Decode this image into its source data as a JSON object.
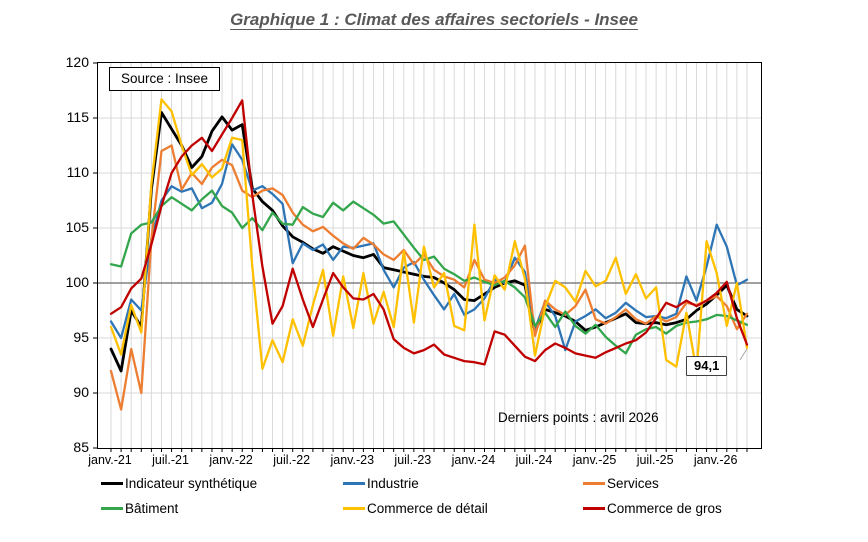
{
  "title": "Graphique 1 : Climat des affaires sectoriels - Insee",
  "source_label": "Source : Insee",
  "last_points_label": "Derniers points : avril 2026",
  "annotation": {
    "label": "94,1",
    "value": 94.1,
    "month": 63
  },
  "colors": {
    "title_gray": "#595959",
    "grid": "#d9d9d9",
    "baseline_100": "#808080",
    "frame": "#000000",
    "leader": "#a6a6a6"
  },
  "chart_data": {
    "type": "line",
    "x_unit": "month",
    "n_points": 64,
    "x_range_labels": [
      "janv.-21",
      "avril 2026"
    ],
    "ylim": [
      85,
      120
    ],
    "y_ticks": [
      120,
      115,
      110,
      105,
      100,
      95,
      90,
      85
    ],
    "x_ticks": [
      {
        "month": 0,
        "label": "janv.-21"
      },
      {
        "month": 6,
        "label": "juil.-21"
      },
      {
        "month": 12,
        "label": "janv.-22"
      },
      {
        "month": 18,
        "label": "juil.-22"
      },
      {
        "month": 24,
        "label": "janv.-23"
      },
      {
        "month": 30,
        "label": "juil.-23"
      },
      {
        "month": 36,
        "label": "janv.-24"
      },
      {
        "month": 42,
        "label": "juil.-24"
      },
      {
        "month": 48,
        "label": "janv.-25"
      },
      {
        "month": 54,
        "label": "juil.-25"
      },
      {
        "month": 60,
        "label": "janv.-26"
      }
    ],
    "grid": {
      "vertical": "monthly",
      "horizontal": "every 5"
    },
    "legend_position": "bottom",
    "series": [
      {
        "key": "synthetique",
        "name": "Indicateur synthétique",
        "color": "#000000",
        "values": [
          94.0,
          92.0,
          97.5,
          96.0,
          108.5,
          115.5,
          114.0,
          112.5,
          110.5,
          111.5,
          113.8,
          115.1,
          113.9,
          114.4,
          108.6,
          107.4,
          106.6,
          105.2,
          104.2,
          103.7,
          103.1,
          102.7,
          103.3,
          102.9,
          102.5,
          102.3,
          102.6,
          101.4,
          101.2,
          101.0,
          100.8,
          100.6,
          100.5,
          100.0,
          99.4,
          98.5,
          98.4,
          99.0,
          99.6,
          100.0,
          100.2,
          99.8,
          95.6,
          97.6,
          97.3,
          97.0,
          96.5,
          95.7,
          96.0,
          96.4,
          96.8,
          97.2,
          96.4,
          96.3,
          96.4,
          96.2,
          96.4,
          96.7,
          97.5,
          98.1,
          98.9,
          99.8,
          97.6,
          97.0
        ]
      },
      {
        "key": "industrie",
        "name": "Industrie",
        "color": "#2e75b6",
        "values": [
          96.5,
          95.0,
          98.5,
          97.5,
          104.0,
          107.5,
          108.8,
          108.3,
          108.6,
          106.8,
          107.3,
          109.0,
          112.6,
          111.2,
          108.4,
          108.8,
          108.1,
          107.2,
          101.8,
          103.6,
          103.0,
          103.5,
          102.1,
          103.3,
          103.2,
          103.4,
          103.6,
          101.2,
          99.6,
          101.4,
          101.9,
          100.3,
          98.9,
          97.6,
          99.0,
          97.1,
          97.6,
          98.6,
          100.3,
          100.0,
          102.3,
          101.0,
          95.8,
          98.3,
          97.0,
          93.9,
          96.5,
          97.0,
          97.6,
          96.8,
          97.3,
          98.2,
          97.5,
          96.9,
          97.0,
          96.8,
          97.2,
          100.6,
          98.4,
          101.5,
          105.3,
          103.3,
          99.8,
          100.3
        ]
      },
      {
        "key": "services",
        "name": "Services",
        "color": "#ed7d31",
        "values": [
          92.0,
          88.5,
          94.0,
          90.0,
          104.0,
          112.0,
          112.5,
          108.5,
          110.0,
          109.0,
          110.5,
          111.2,
          110.7,
          108.4,
          107.8,
          108.4,
          108.6,
          108.0,
          106.4,
          105.3,
          104.7,
          105.1,
          104.3,
          103.6,
          103.1,
          104.1,
          103.5,
          102.6,
          102.1,
          103.0,
          101.7,
          102.6,
          101.2,
          100.6,
          100.3,
          99.6,
          102.1,
          100.3,
          100.0,
          100.5,
          101.6,
          103.4,
          95.2,
          98.4,
          97.6,
          97.1,
          97.9,
          99.4,
          96.7,
          96.3,
          96.9,
          97.6,
          96.7,
          96.3,
          97.0,
          96.5,
          96.9,
          98.2,
          98.0,
          98.4,
          98.8,
          97.9,
          95.8,
          97.2
        ]
      },
      {
        "key": "batiment",
        "name": "Bâtiment",
        "color": "#33a64c",
        "values": [
          101.7,
          101.5,
          104.5,
          105.3,
          105.5,
          107.0,
          107.8,
          107.2,
          106.6,
          107.6,
          108.4,
          107.0,
          106.4,
          105.0,
          105.9,
          104.8,
          106.4,
          105.4,
          105.3,
          106.9,
          106.3,
          106.0,
          107.3,
          106.6,
          107.4,
          106.8,
          106.2,
          105.4,
          105.6,
          104.4,
          103.2,
          102.1,
          102.4,
          101.3,
          100.8,
          100.2,
          100.5,
          100.1,
          99.8,
          100.2,
          99.6,
          98.7,
          96.1,
          97.3,
          96.0,
          97.4,
          96.1,
          95.4,
          96.2,
          95.1,
          94.3,
          93.6,
          95.3,
          95.8,
          96.0,
          95.4,
          96.1,
          96.4,
          96.5,
          96.7,
          97.1,
          97.0,
          96.6,
          96.2
        ]
      },
      {
        "key": "commerce_detail",
        "name": "Commerce de détail",
        "color": "#ffc000",
        "values": [
          96.0,
          93.5,
          98.0,
          95.5,
          109.0,
          116.7,
          115.6,
          112.5,
          109.8,
          110.8,
          109.6,
          110.4,
          113.2,
          113.0,
          101.5,
          92.2,
          94.8,
          92.8,
          96.7,
          94.3,
          98.0,
          101.2,
          95.2,
          100.6,
          95.9,
          100.9,
          96.3,
          99.2,
          96.0,
          102.9,
          96.4,
          103.3,
          99.6,
          100.9,
          96.1,
          95.7,
          105.3,
          96.6,
          100.7,
          99.4,
          103.8,
          100.4,
          93.4,
          97.8,
          100.2,
          99.6,
          98.3,
          101.1,
          99.7,
          100.2,
          102.3,
          99.0,
          100.8,
          98.6,
          99.6,
          93.0,
          92.4,
          97.3,
          92.0,
          103.8,
          100.9,
          96.1,
          100.0,
          94.1
        ]
      },
      {
        "key": "commerce_gros",
        "name": "Commerce de gros",
        "color": "#c00000",
        "values": [
          97.2,
          97.8,
          99.5,
          100.4,
          103.5,
          107.0,
          110.0,
          111.5,
          112.5,
          113.2,
          112.0,
          113.5,
          115.0,
          116.6,
          108.0,
          101.5,
          96.3,
          97.9,
          101.3,
          98.5,
          96.0,
          98.5,
          100.9,
          99.6,
          98.6,
          98.5,
          99.0,
          97.6,
          94.9,
          94.1,
          93.6,
          93.9,
          94.4,
          93.5,
          93.2,
          92.9,
          92.8,
          92.6,
          95.6,
          95.3,
          94.3,
          93.3,
          92.9,
          93.9,
          94.5,
          94.1,
          93.6,
          93.4,
          93.2,
          93.7,
          94.1,
          94.5,
          94.8,
          95.5,
          96.8,
          98.2,
          97.8,
          98.4,
          97.9,
          98.4,
          99.1,
          100.1,
          96.8,
          94.4
        ]
      }
    ]
  }
}
